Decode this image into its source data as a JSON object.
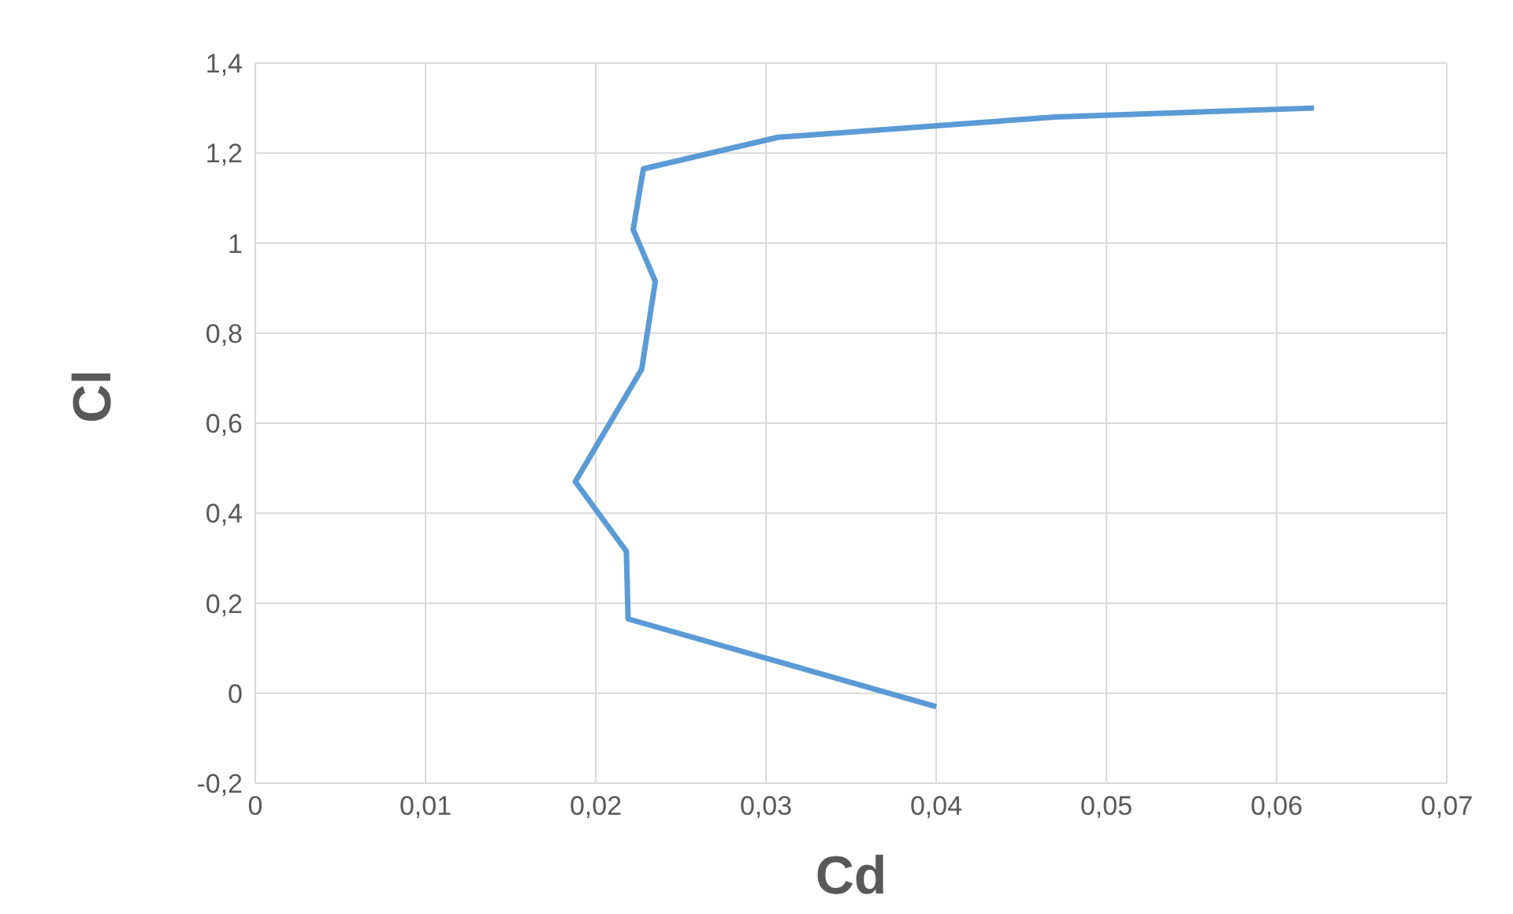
{
  "chart_data": {
    "type": "line",
    "xlabel": "Cd",
    "ylabel": "Cl",
    "x": [
      0.04,
      0.0219,
      0.0218,
      0.0188,
      0.0227,
      0.0235,
      0.0222,
      0.0228,
      0.0307,
      0.047,
      0.0622
    ],
    "series": [
      {
        "color": "#5b9bd5",
        "values": [
          -0.03,
          0.165,
          0.315,
          0.47,
          0.72,
          0.915,
          1.03,
          1.165,
          1.235,
          1.28,
          1.3
        ]
      }
    ],
    "xlim": [
      0,
      0.07
    ],
    "xticks": [
      0,
      {
        "value": 0.01,
        "label": "0,01"
      },
      {
        "value": 0.02,
        "label": "0,02"
      },
      {
        "value": 0.03,
        "label": "0,03"
      },
      {
        "value": 0.04,
        "label": "0,04"
      },
      {
        "value": 0.05,
        "label": "0,05"
      },
      {
        "value": 0.06,
        "label": "0,06"
      },
      {
        "value": 0.07,
        "label": "0,07"
      }
    ],
    "ylim": [
      -0.2,
      1.4
    ],
    "yticks": [
      {
        "value": -0.2,
        "label": "-0,2"
      },
      0,
      {
        "value": 0.2,
        "label": "0,2"
      },
      {
        "value": 0.4,
        "label": "0,4"
      },
      {
        "value": 0.6,
        "label": "0,6"
      },
      {
        "value": 0.8,
        "label": "0,8"
      },
      1,
      {
        "value": 1.2,
        "label": "1,2"
      },
      {
        "value": 1.4,
        "label": "1,4"
      }
    ],
    "grid": true,
    "marker": "none",
    "line_style": "solid"
  }
}
